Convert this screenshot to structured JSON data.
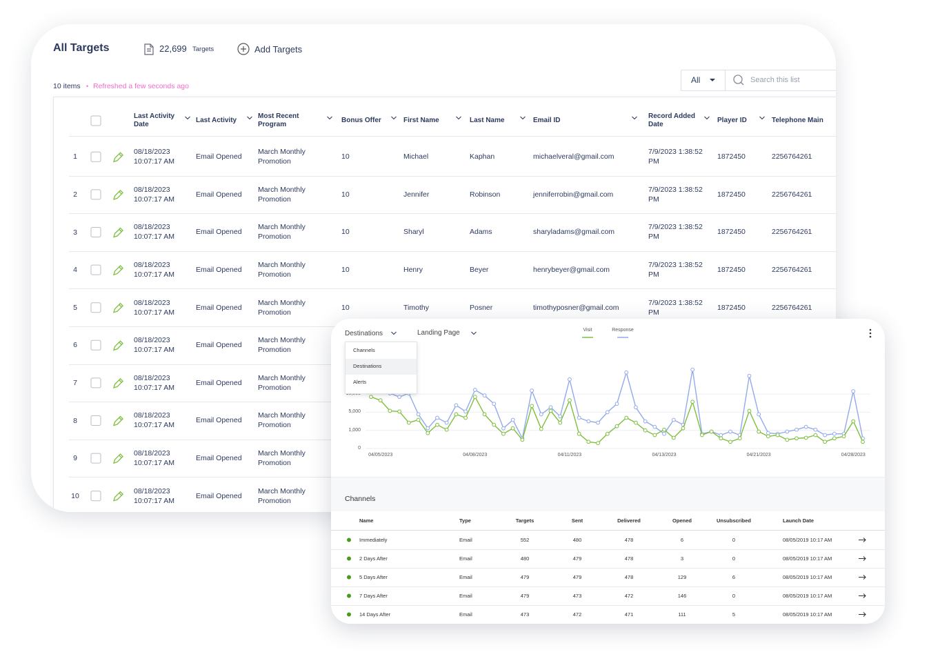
{
  "header": {
    "title": "All Targets",
    "count": "22,699",
    "count_label": "Targets",
    "add_button": "Add Targets"
  },
  "status": {
    "items": "10 items",
    "separator": "•",
    "refreshed": "Refreshed a few seconds ago"
  },
  "toolbar": {
    "filter": "All",
    "search_placeholder": "Search this list"
  },
  "table": {
    "columns": [
      "Last Activity Date",
      "Last Activity",
      "Most Recent Program",
      "Bonus Offer",
      "First Name",
      "Last Name",
      "Email ID",
      "Record Added Date",
      "Player ID",
      "Telephone Main"
    ],
    "rows": [
      [
        "1",
        "08/18/2023 10:07:17 AM",
        "Email Opened",
        "March Monthly Promotion",
        "10",
        "Michael",
        "Kaphan",
        "michaelveral@gmail.com",
        "7/9/2023 1:38:52 PM",
        "1872450",
        "2256764261"
      ],
      [
        "2",
        "08/18/2023 10:07:17 AM",
        "Email Opened",
        "March Monthly Promotion",
        "10",
        "Jennifer",
        "Robinson",
        "jenniferrobin@gmail.com",
        "7/9/2023 1:38:52 PM",
        "1872450",
        "2256764261"
      ],
      [
        "3",
        "08/18/2023 10:07:17 AM",
        "Email Opened",
        "March Monthly Promotion",
        "10",
        "Sharyl",
        "Adams",
        "sharyladams@gmail.com",
        "7/9/2023 1:38:52 PM",
        "1872450",
        "2256764261"
      ],
      [
        "4",
        "08/18/2023 10:07:17 AM",
        "Email Opened",
        "March Monthly Promotion",
        "10",
        "Henry",
        "Beyer",
        "henrybeyer@gmail.com",
        "7/9/2023 1:38:52 PM",
        "1872450",
        "2256764261"
      ],
      [
        "5",
        "08/18/2023 10:07:17 AM",
        "Email Opened",
        "March Monthly Promotion",
        "10",
        "Timothy",
        "Posner",
        "timothyposner@gmail.com",
        "7/9/2023 1:38:52 PM",
        "1872450",
        "2256764261"
      ],
      [
        "6",
        "08/18/2023 10:07:17 AM",
        "Email Opened",
        "March Monthly Promotion"
      ],
      [
        "7",
        "08/18/2023 10:07:17 AM",
        "Email Opened",
        "March Monthly Promotion"
      ],
      [
        "8",
        "08/18/2023 10:07:17 AM",
        "Email Opened",
        "March Monthly Promotion"
      ],
      [
        "9",
        "08/18/2023 10:07:17 AM",
        "Email Opened",
        "March Monthly Promotion"
      ],
      [
        "10",
        "08/18/2023 10:07:17 AM",
        "Email Opened",
        "March Monthly Promotion"
      ]
    ]
  },
  "panel": {
    "dropdowns": [
      "Destinations",
      "Landing Page"
    ],
    "menu": [
      "Channels",
      "Destinations",
      "Alerts"
    ],
    "channels": {
      "title": "Channels",
      "columns": [
        "Name",
        "Type",
        "Targets",
        "Sent",
        "Delivered",
        "Opened",
        "Unsubscribed",
        "Launch Date"
      ],
      "rows": [
        [
          "Immediately",
          "Email",
          552,
          480,
          478,
          6,
          0,
          "08/05/2019 10:17 AM"
        ],
        [
          "2 Days After",
          "Email",
          480,
          479,
          478,
          3,
          0,
          "08/05/2019 10:17 AM"
        ],
        [
          "5 Days After",
          "Email",
          479,
          479,
          478,
          129,
          6,
          "08/05/2019 10:17 AM"
        ],
        [
          "7 Days After",
          "Email",
          479,
          473,
          472,
          146,
          0,
          "08/05/2019 10:17 AM"
        ],
        [
          "14 Days After",
          "Email",
          473,
          472,
          471,
          111,
          5,
          "08/05/2019 10:17 AM"
        ]
      ]
    }
  },
  "chart_data": {
    "type": "line",
    "categories": [
      null,
      "04/05/2023",
      null,
      null,
      null,
      null,
      null,
      null,
      null,
      null,
      null,
      "04/08/2023",
      null,
      null,
      null,
      null,
      null,
      null,
      null,
      null,
      null,
      "04/11/2023",
      null,
      null,
      null,
      null,
      null,
      null,
      null,
      null,
      null,
      "04/13/2023",
      null,
      null,
      null,
      null,
      null,
      null,
      null,
      null,
      null,
      "04/21/2023",
      null,
      null,
      null,
      null,
      null,
      null,
      null,
      null,
      null,
      "04/28/2023",
      null
    ],
    "series": [
      {
        "name": "Visit",
        "color": "#7dbf3b",
        "values": [
          9230,
          8270,
          5380,
          5190,
          2690,
          3310,
          850,
          2230,
          1150,
          4540,
          3770,
          9230,
          4540,
          2230,
          810,
          1460,
          480,
          6730,
          1310,
          5380,
          2690,
          8270,
          810,
          370,
          300,
          810,
          1920,
          3770,
          2690,
          1000,
          740,
          1150,
          590,
          1460,
          7880,
          740,
          930,
          560,
          370,
          560,
          5380,
          930,
          670,
          740,
          480,
          560,
          590,
          740,
          370,
          560,
          670,
          3000,
          370
        ]
      },
      {
        "name": "Response",
        "color": "#92a9ec",
        "values": [
          12100,
          11150,
          10200,
          9230,
          10200,
          4540,
          1460,
          3770,
          2690,
          6920,
          5190,
          11150,
          9620,
          7310,
          1460,
          3310,
          560,
          10960,
          4540,
          6350,
          4080,
          14040,
          3770,
          3000,
          2690,
          5000,
          7310,
          15960,
          6350,
          3000,
          1770,
          810,
          3310,
          2230,
          16730,
          810,
          930,
          740,
          930,
          740,
          15000,
          4540,
          850,
          810,
          930,
          1150,
          1770,
          1150,
          740,
          810,
          810,
          10770,
          560
        ]
      }
    ],
    "ylim": [
      0,
      20000
    ],
    "yticks": [
      0,
      {
        "value": 1000,
        "label": "1,000"
      },
      {
        "value": 5000,
        "label": "5,000"
      },
      {
        "value": 10000,
        "label": "10,000"
      }
    ],
    "y_scale": "tick-spaced",
    "grid": true
  }
}
